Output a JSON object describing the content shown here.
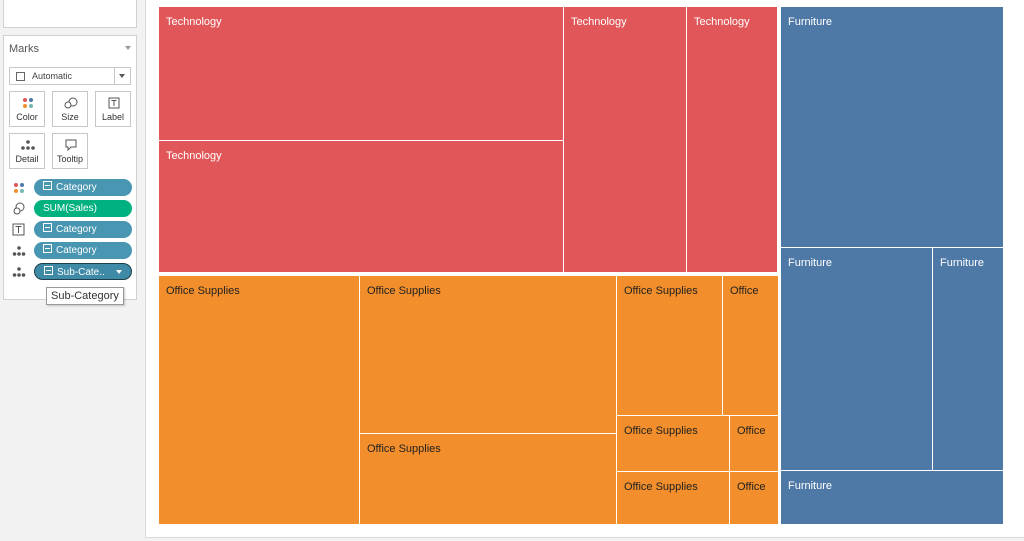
{
  "marks": {
    "title": "Marks",
    "mark_type": "Automatic",
    "buttons": {
      "color": "Color",
      "size": "Size",
      "label": "Label",
      "detail": "Detail",
      "tooltip": "Tooltip"
    },
    "pills": [
      {
        "label": "Category",
        "encoding": "color",
        "color": "#4996b2"
      },
      {
        "label": "SUM(Sales)",
        "encoding": "size",
        "color": "#00b180"
      },
      {
        "label": "Category",
        "encoding": "label",
        "color": "#4996b2"
      },
      {
        "label": "Category",
        "encoding": "detail",
        "color": "#4996b2"
      },
      {
        "label": "Sub-Cate..",
        "encoding": "detail",
        "color": "#3f8aa6"
      }
    ],
    "tooltip": "Sub-Category"
  },
  "treemap": {
    "colors": {
      "Technology": "#e15759",
      "Office Supplies": "#f28e2b",
      "Furniture": "#4e79a7"
    },
    "tiles": [
      {
        "label": "Technology",
        "cat": "tech"
      },
      {
        "label": "Technology",
        "cat": "tech"
      },
      {
        "label": "Technology",
        "cat": "tech"
      },
      {
        "label": "Technology",
        "cat": "tech"
      },
      {
        "label": "Office Supplies",
        "cat": "off"
      },
      {
        "label": "Office Supplies",
        "cat": "off"
      },
      {
        "label": "Office Supplies",
        "cat": "off"
      },
      {
        "label": "Office Supplies",
        "cat": "off"
      },
      {
        "label": "Office",
        "cat": "off"
      },
      {
        "label": "Office Supplies",
        "cat": "off"
      },
      {
        "label": "Office",
        "cat": "off"
      },
      {
        "label": "Office Supplies",
        "cat": "off"
      },
      {
        "label": "Office",
        "cat": "off"
      },
      {
        "label": "Furniture",
        "cat": "furn"
      },
      {
        "label": "Furniture",
        "cat": "furn"
      },
      {
        "label": "Furniture",
        "cat": "furn"
      },
      {
        "label": "Furniture",
        "cat": "furn"
      }
    ]
  }
}
